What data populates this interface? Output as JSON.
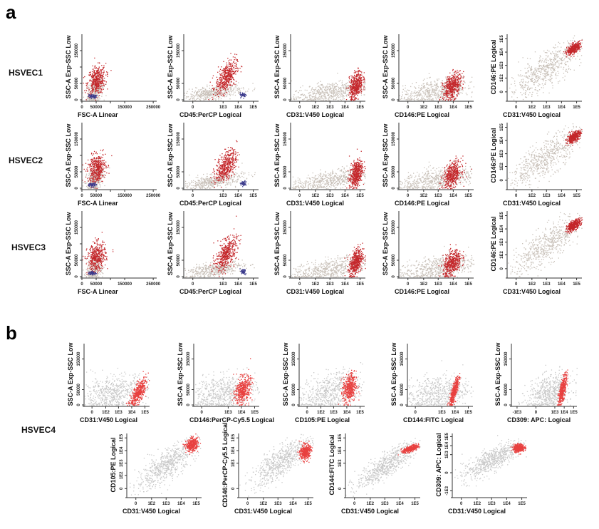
{
  "panels": [
    {
      "letter": "a"
    },
    {
      "letter": "b"
    }
  ],
  "row_labels": [
    "HSVEC1",
    "HSVEC2",
    "HSVEC3",
    "HSVEC4"
  ],
  "colors": {
    "pos_a": "#c4262a",
    "neg_a": "#c9c1b9",
    "cd45_a": "#3b3a8c",
    "pos_b": "#e8403f",
    "neg_b": "#c9c9c9"
  },
  "chart_data": [
    {
      "id": "a-HSVEC1-FSC",
      "type": "scatter",
      "xlabel": "FSC-A Linear",
      "ylabel": "SSC-A Exp-SSC Low",
      "xaxis": {
        "scale": "linear",
        "max": 262144,
        "ticks": [
          [
            "0",
            0
          ],
          [
            "50000",
            50000
          ],
          [
            "",
            100000
          ],
          [
            "150000",
            150000
          ],
          [
            "250000",
            250000
          ]
        ]
      },
      "yaxis": {
        "scale": "linear",
        "max": 200000,
        "ticks": [
          [
            "0",
            0
          ],
          [
            "50000",
            50000
          ],
          [
            "",
            100000
          ],
          [
            "150000",
            150000
          ]
        ]
      },
      "clusters": [
        {
          "x": 45000,
          "y": 30000,
          "sd_x": 14000,
          "sd_y": 22000,
          "r": 0.4,
          "n": 350,
          "c": "neg_a"
        },
        {
          "x": 50000,
          "y": 60000,
          "sd_x": 16000,
          "sd_y": 22000,
          "r": 0.2,
          "n": 420,
          "c": "pos_a"
        },
        {
          "x": 35000,
          "y": 12000,
          "sd_x": 7000,
          "sd_y": 3000,
          "r": 0,
          "n": 60,
          "c": "cd45_a"
        }
      ]
    },
    {
      "id": "a-HSVEC1-CD45",
      "type": "scatter",
      "xlabel": "CD45:PerCP Logical",
      "ylabel": "SSC-A Exp-SSC Low",
      "xaxis": {
        "scale": "logical",
        "ticks": [
          [
            "0",
            0
          ],
          [
            "1E3",
            1000
          ],
          [
            "1E4",
            10000
          ],
          [
            "1E5",
            100000
          ]
        ]
      },
      "yaxis": {
        "scale": "linear",
        "max": 200000,
        "ticks": [
          [
            "0",
            0
          ],
          [
            "50000",
            50000
          ],
          [
            "150000",
            150000
          ]
        ]
      },
      "clusters": [
        {
          "x": 200,
          "y": 22000,
          "sd_x": 1.0,
          "sd_y": 12000,
          "r": 0.55,
          "n": 450,
          "c": "neg_a"
        },
        {
          "x": 1500,
          "y": 70000,
          "sd_x": 0.35,
          "sd_y": 25000,
          "r": 0.55,
          "n": 450,
          "c": "pos_a"
        },
        {
          "x": 20000,
          "y": 16000,
          "sd_x": 0.1,
          "sd_y": 4000,
          "r": 0,
          "n": 50,
          "c": "cd45_a"
        }
      ]
    },
    {
      "id": "a-HSVEC1-CD31",
      "type": "scatter",
      "xlabel": "CD31:V450 Logical",
      "ylabel": "SSC-A Exp-SSC Low",
      "xaxis": {
        "scale": "logical",
        "ticks": [
          [
            "0",
            0
          ],
          [
            "1E2",
            100
          ],
          [
            "1E3",
            1000
          ],
          [
            "1E4",
            10000
          ],
          [
            "1E5",
            100000
          ]
        ]
      },
      "yaxis": {
        "scale": "linear",
        "max": 200000,
        "ticks": [
          [
            "0",
            0
          ],
          [
            "50000",
            50000
          ],
          [
            "150000",
            150000
          ]
        ]
      },
      "clusters": [
        {
          "x": 1000,
          "y": 25000,
          "sd_x": 1.3,
          "sd_y": 18000,
          "r": 0.55,
          "n": 550,
          "c": "neg_a"
        },
        {
          "x": 50000,
          "y": 45000,
          "sd_x": 0.22,
          "sd_y": 22000,
          "r": 0.4,
          "n": 450,
          "c": "pos_a"
        }
      ]
    },
    {
      "id": "a-HSVEC1-CD146",
      "type": "scatter",
      "xlabel": "CD146:PE Logical",
      "ylabel": "SSC-A Exp-SSC Low",
      "xaxis": {
        "scale": "logical",
        "ticks": [
          [
            "0",
            0
          ],
          [
            "1E2",
            100
          ],
          [
            "1E3",
            1000
          ],
          [
            "1E4",
            10000
          ],
          [
            "1E5",
            100000
          ]
        ]
      },
      "yaxis": {
        "scale": "linear",
        "max": 200000,
        "ticks": [
          [
            "0",
            0
          ],
          [
            "50000",
            50000
          ],
          [
            "150000",
            150000
          ]
        ]
      },
      "clusters": [
        {
          "x": 800,
          "y": 28000,
          "sd_x": 1.3,
          "sd_y": 20000,
          "r": 0.5,
          "n": 550,
          "c": "neg_a"
        },
        {
          "x": 8000,
          "y": 42000,
          "sd_x": 0.3,
          "sd_y": 20000,
          "r": 0.4,
          "n": 450,
          "c": "pos_a"
        }
      ]
    },
    {
      "id": "a-HSVEC1-CD31-CD146",
      "type": "scatter",
      "xlabel": "CD31:V450 Logical",
      "ylabel": "CD146:PE Logical",
      "xaxis": {
        "scale": "logical",
        "ticks": [
          [
            "0",
            0
          ],
          [
            "1E2",
            100
          ],
          [
            "1E3",
            1000
          ],
          [
            "1E4",
            10000
          ],
          [
            "1E5",
            100000
          ]
        ]
      },
      "yaxis": {
        "scale": "logical",
        "ticks": [
          [
            "0",
            0
          ],
          [
            "1E2",
            100
          ],
          [
            "1E3",
            1000
          ],
          [
            "1E4",
            10000
          ],
          [
            "1E5",
            100000
          ]
        ]
      },
      "clusters": [
        {
          "x": 800,
          "y": 500,
          "sd_x": 1.2,
          "sd_y": 1.1,
          "r": 0.8,
          "n": 600,
          "c": "neg_a"
        },
        {
          "x": 60000,
          "y": 20000,
          "sd_x": 0.22,
          "sd_y": 0.22,
          "r": 0.6,
          "n": 400,
          "c": "pos_a"
        }
      ]
    },
    {
      "id": "b-HSVEC4-CD31",
      "type": "scatter",
      "xlabel": "CD31:V450 Logical",
      "ylabel": "SSC-A Exp-SSC Low",
      "xaxis": {
        "scale": "logical",
        "ticks": [
          [
            "0",
            0
          ],
          [
            "1E2",
            100
          ],
          [
            "1E3",
            1000
          ],
          [
            "1E4",
            10000
          ],
          [
            "1E5",
            100000
          ]
        ]
      },
      "yaxis": {
        "scale": "linear",
        "max": 200000,
        "ticks": [
          [
            "0",
            0
          ],
          [
            "50000",
            50000
          ],
          [
            "150000",
            150000
          ]
        ]
      },
      "clusters": [
        {
          "x": 300,
          "y": 40000,
          "sd_x": 1.3,
          "sd_y": 30000,
          "r": 0.3,
          "n": 600,
          "c": "neg_b"
        },
        {
          "x": 30000,
          "y": 40000,
          "sd_x": 0.3,
          "sd_y": 22000,
          "r": 0.7,
          "n": 450,
          "c": "pos_b"
        }
      ]
    },
    {
      "id": "b-HSVEC4-CD146",
      "type": "scatter",
      "xlabel": "CD146:PerCP-Cy5.5 Logical",
      "ylabel": "SSC-A Exp-SSC Low",
      "xaxis": {
        "scale": "logical",
        "ticks": [
          [
            "0",
            0
          ],
          [
            "1E3",
            1000
          ],
          [
            "1E4",
            10000
          ],
          [
            "1E5",
            100000
          ]
        ]
      },
      "yaxis": {
        "scale": "linear",
        "max": 200000,
        "ticks": [
          [
            "0",
            0
          ],
          [
            "50000",
            50000
          ],
          [
            "150000",
            150000
          ]
        ]
      },
      "clusters": [
        {
          "x": 300,
          "y": 40000,
          "sd_x": 1.3,
          "sd_y": 30000,
          "r": 0.3,
          "n": 600,
          "c": "neg_b"
        },
        {
          "x": 12000,
          "y": 50000,
          "sd_x": 0.3,
          "sd_y": 22000,
          "r": 0.3,
          "n": 450,
          "c": "pos_b"
        }
      ]
    },
    {
      "id": "b-HSVEC4-CD105",
      "type": "scatter",
      "xlabel": "CD105:PE Logical",
      "ylabel": "SSC-A Exp-SSC Low",
      "xaxis": {
        "scale": "logical",
        "ticks": [
          [
            "0",
            0
          ],
          [
            "1E2",
            100
          ],
          [
            "1E3",
            1000
          ],
          [
            "1E4",
            10000
          ],
          [
            "1E5",
            100000
          ]
        ]
      },
      "yaxis": {
        "scale": "linear",
        "max": 200000,
        "ticks": [
          [
            "0",
            0
          ],
          [
            "50000",
            50000
          ],
          [
            "150000",
            150000
          ]
        ]
      },
      "clusters": [
        {
          "x": 500,
          "y": 45000,
          "sd_x": 1.2,
          "sd_y": 32000,
          "r": 0.4,
          "n": 600,
          "c": "neg_b"
        },
        {
          "x": 15000,
          "y": 55000,
          "sd_x": 0.25,
          "sd_y": 24000,
          "r": 0.2,
          "n": 450,
          "c": "pos_b"
        }
      ]
    },
    {
      "id": "b-HSVEC4-CD144",
      "type": "scatter",
      "xlabel": "CD144:FITC Logical",
      "ylabel": "SSC-A Exp-SSC Low",
      "xaxis": {
        "scale": "logical",
        "ticks": [
          [
            "0",
            0
          ],
          [
            "1E3",
            1000
          ],
          [
            "1E4",
            10000
          ],
          [
            "1E5",
            100000
          ]
        ]
      },
      "yaxis": {
        "scale": "linear",
        "max": 200000,
        "ticks": [
          [
            "0",
            0
          ],
          [
            "50000",
            50000
          ],
          [
            "150000",
            150000
          ]
        ]
      },
      "clusters": [
        {
          "x": 300,
          "y": 40000,
          "sd_x": 1.3,
          "sd_y": 30000,
          "r": 0.3,
          "n": 600,
          "c": "neg_b"
        },
        {
          "x": 8000,
          "y": 45000,
          "sd_x": 0.17,
          "sd_y": 24000,
          "r": 0.8,
          "n": 400,
          "c": "pos_b"
        }
      ]
    },
    {
      "id": "b-HSVEC4-CD309",
      "type": "scatter",
      "xlabel": "CD309: APC: Logical",
      "ylabel": "SSC-A Exp-SSC Low",
      "xaxis": {
        "scale": "logical",
        "ticks": [
          [
            "-1E3",
            -1000
          ],
          [
            "0",
            0
          ],
          [
            "1E3",
            1000
          ],
          [
            "1E4",
            10000
          ],
          [
            "1E5",
            100000
          ]
        ]
      },
      "yaxis": {
        "scale": "linear",
        "max": 200000,
        "ticks": [
          [
            "0",
            0
          ],
          [
            "50000",
            50000
          ],
          [
            "150000",
            150000
          ]
        ]
      },
      "clusters": [
        {
          "x": 300,
          "y": 40000,
          "sd_x": 1.2,
          "sd_y": 30000,
          "r": 0.3,
          "n": 600,
          "c": "neg_b"
        },
        {
          "x": 6000,
          "y": 50000,
          "sd_x": 0.22,
          "sd_y": 24000,
          "r": 0.7,
          "n": 400,
          "c": "pos_b"
        }
      ]
    },
    {
      "id": "b-HSVEC4-CD31-CD105",
      "type": "scatter",
      "xlabel": "CD31:V450 Logical",
      "ylabel": "CD105:PE Logical",
      "xaxis": {
        "scale": "logical",
        "ticks": [
          [
            "0",
            0
          ],
          [
            "1E2",
            100
          ],
          [
            "1E3",
            1000
          ],
          [
            "1E4",
            10000
          ],
          [
            "1E5",
            100000
          ]
        ]
      },
      "yaxis": {
        "scale": "logical",
        "ticks": [
          [
            "0",
            0
          ],
          [
            "1E2",
            100
          ],
          [
            "1E3",
            1000
          ],
          [
            "1E4",
            10000
          ],
          [
            "1E5",
            100000
          ]
        ]
      },
      "clusters": [
        {
          "x": 1000,
          "y": 800,
          "sd_x": 1.0,
          "sd_y": 1.0,
          "r": 0.8,
          "n": 650,
          "c": "neg_b"
        },
        {
          "x": 50000,
          "y": 30000,
          "sd_x": 0.2,
          "sd_y": 0.25,
          "r": 0.2,
          "n": 400,
          "c": "pos_b"
        }
      ]
    },
    {
      "id": "b-HSVEC4-CD31-CD146",
      "type": "scatter",
      "xlabel": "CD31:V450 Logical",
      "ylabel": "CD146:PerCP-Cy5.5 Logical",
      "xaxis": {
        "scale": "logical",
        "ticks": [
          [
            "0",
            0
          ],
          [
            "1E2",
            100
          ],
          [
            "1E3",
            1000
          ],
          [
            "1E4",
            10000
          ],
          [
            "1E5",
            100000
          ]
        ]
      },
      "yaxis": {
        "scale": "logical",
        "ticks": [
          [
            "0",
            0
          ],
          [
            "1E3",
            1000
          ],
          [
            "1E4",
            10000
          ],
          [
            "1E5",
            100000
          ]
        ]
      },
      "clusters": [
        {
          "x": 1500,
          "y": 1500,
          "sd_x": 1.0,
          "sd_y": 1.0,
          "r": 0.8,
          "n": 650,
          "c": "neg_b"
        },
        {
          "x": 60000,
          "y": 8000,
          "sd_x": 0.17,
          "sd_y": 0.3,
          "r": 0.1,
          "n": 400,
          "c": "pos_b"
        }
      ]
    },
    {
      "id": "b-HSVEC4-CD31-CD144",
      "type": "scatter",
      "xlabel": "CD31:V450 Logical",
      "ylabel": "CD144:FITC Logical",
      "xaxis": {
        "scale": "logical",
        "ticks": [
          [
            "0",
            0
          ],
          [
            "1E2",
            100
          ],
          [
            "1E3",
            1000
          ],
          [
            "1E4",
            10000
          ],
          [
            "1E5",
            100000
          ]
        ]
      },
      "yaxis": {
        "scale": "logical",
        "ticks": [
          [
            "0",
            0
          ],
          [
            "1E3",
            1000
          ],
          [
            "1E4",
            10000
          ],
          [
            "1E5",
            100000
          ]
        ]
      },
      "clusters": [
        {
          "x": 1200,
          "y": 800,
          "sd_x": 1.0,
          "sd_y": 0.9,
          "r": 0.85,
          "n": 650,
          "c": "neg_b"
        },
        {
          "x": 50000,
          "y": 15000,
          "sd_x": 0.25,
          "sd_y": 0.15,
          "r": 0.6,
          "n": 400,
          "c": "pos_b"
        }
      ]
    },
    {
      "id": "b-HSVEC4-CD31-CD309",
      "type": "scatter",
      "xlabel": "CD31:V450 Logical",
      "ylabel": "CD309: APC: Logical",
      "xaxis": {
        "scale": "logical",
        "ticks": [
          [
            "0",
            0
          ],
          [
            "1E2",
            100
          ],
          [
            "1E3",
            1000
          ],
          [
            "1E4",
            10000
          ],
          [
            "1E5",
            100000
          ]
        ]
      },
      "yaxis": {
        "scale": "logical",
        "ticks": [
          [
            "-1E3",
            -1000
          ],
          [
            "0",
            0
          ],
          [
            "1E3",
            1000
          ],
          [
            "1E4",
            10000
          ],
          [
            "1E5",
            100000
          ]
        ]
      },
      "clusters": [
        {
          "x": 1000,
          "y": 300,
          "sd_x": 1.0,
          "sd_y": 1.1,
          "r": 0.8,
          "n": 650,
          "c": "neg_b"
        },
        {
          "x": 60000,
          "y": 6000,
          "sd_x": 0.18,
          "sd_y": 0.22,
          "r": 0.1,
          "n": 400,
          "c": "pos_b"
        }
      ]
    }
  ]
}
